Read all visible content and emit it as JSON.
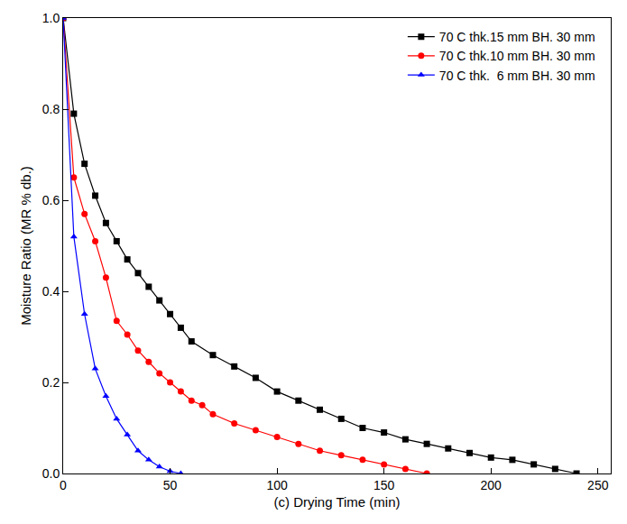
{
  "chart_data": {
    "type": "line",
    "x_label": "(c) Drying Time (min)",
    "y_label": "Moisture Ratio (MR % db.)",
    "xlim": [
      0,
      256
    ],
    "xticks": [
      0,
      50,
      100,
      150,
      200,
      250
    ],
    "ylim": [
      0,
      1.0
    ],
    "yticks": [
      {
        "value": 0,
        "label": "0.0"
      },
      0.2,
      0.4,
      0.6,
      0.8,
      {
        "value": 1,
        "label": "1.0"
      }
    ],
    "grid": false,
    "legend": "top right",
    "series": [
      {
        "name": "70 C thk.15 mm BH. 30 mm",
        "color": "#000000",
        "marker": "square",
        "line_style": "solid",
        "x": [
          0,
          5,
          10,
          15,
          20,
          25,
          30,
          35,
          40,
          45,
          50,
          55,
          60,
          70,
          80,
          90,
          100,
          110,
          120,
          130,
          140,
          150,
          160,
          170,
          180,
          190,
          200,
          210,
          220,
          230,
          240
        ],
        "values": [
          1.0,
          0.79,
          0.68,
          0.61,
          0.55,
          0.51,
          0.47,
          0.44,
          0.41,
          0.38,
          0.35,
          0.32,
          0.29,
          0.26,
          0.235,
          0.21,
          0.18,
          0.16,
          0.14,
          0.12,
          0.1,
          0.09,
          0.075,
          0.065,
          0.055,
          0.045,
          0.035,
          0.03,
          0.02,
          0.01,
          0.0
        ]
      },
      {
        "name": "70 C thk.10 mm BH. 30 mm",
        "color": "#ff0000",
        "marker": "circle",
        "line_style": "solid",
        "x": [
          0,
          5,
          10,
          15,
          20,
          25,
          30,
          35,
          40,
          45,
          50,
          55,
          60,
          65,
          70,
          80,
          90,
          100,
          110,
          120,
          130,
          140,
          150,
          160,
          170
        ],
        "values": [
          1.0,
          0.65,
          0.57,
          0.51,
          0.43,
          0.335,
          0.305,
          0.27,
          0.245,
          0.22,
          0.2,
          0.18,
          0.16,
          0.15,
          0.13,
          0.11,
          0.095,
          0.08,
          0.065,
          0.05,
          0.04,
          0.03,
          0.02,
          0.01,
          0.0
        ]
      },
      {
        "name": "70 C thk.  6 mm BH. 30 mm",
        "color": "#0000ff",
        "marker": "triangle-up",
        "line_style": "solid",
        "x": [
          0,
          5,
          10,
          15,
          20,
          25,
          30,
          35,
          40,
          45,
          50,
          55
        ],
        "values": [
          1.0,
          0.52,
          0.35,
          0.23,
          0.17,
          0.12,
          0.085,
          0.05,
          0.03,
          0.015,
          0.005,
          0.0
        ]
      }
    ]
  }
}
